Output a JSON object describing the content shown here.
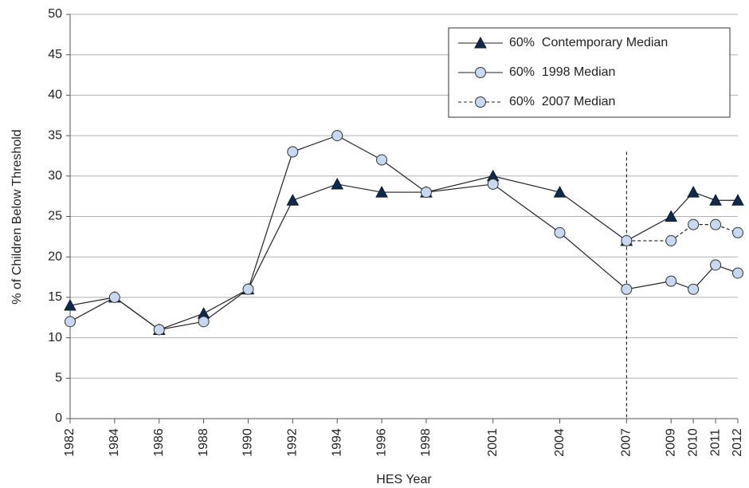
{
  "chart_data": {
    "type": "line",
    "x_label": "HES Year",
    "y_label": "% of Children Below Threshold",
    "x": [
      1982,
      1984,
      1986,
      1988,
      1990,
      1992,
      1994,
      1996,
      1998,
      2001,
      2004,
      2007,
      2009,
      2010,
      2011,
      2012
    ],
    "series": [
      {
        "name": "60%  Contemporary Median",
        "color": "#0f2a4a",
        "marker": "triangle",
        "line_style": "solid",
        "values": [
          14,
          15,
          11,
          13,
          16,
          27,
          29,
          28,
          28,
          30,
          28,
          22,
          25,
          28,
          27,
          27
        ]
      },
      {
        "name": "60%  1998 Median",
        "color": "#c6d9f0",
        "marker": "circle",
        "line_style": "solid",
        "values": [
          12,
          15,
          11,
          12,
          16,
          33,
          35,
          32,
          28,
          29,
          23,
          16,
          17,
          16,
          19,
          18
        ]
      },
      {
        "name": "60%  2007 Median",
        "color": "#c6d9f0",
        "marker": "circle",
        "line_style": "dashed",
        "values": [
          null,
          null,
          null,
          null,
          null,
          null,
          null,
          null,
          null,
          null,
          null,
          22,
          22,
          24,
          24,
          23
        ]
      }
    ],
    "xlim": [
      1982,
      2012
    ],
    "xticks": [
      1982,
      1984,
      1986,
      1988,
      1990,
      1992,
      1994,
      1996,
      1998,
      2001,
      2004,
      2007,
      2009,
      2010,
      2011,
      2012
    ],
    "ylim": [
      0,
      50
    ],
    "yticks": [
      0,
      5,
      10,
      15,
      20,
      25,
      30,
      35,
      40,
      45,
      50
    ],
    "grid": true,
    "vline_x": 2007,
    "legend": "top-right"
  }
}
